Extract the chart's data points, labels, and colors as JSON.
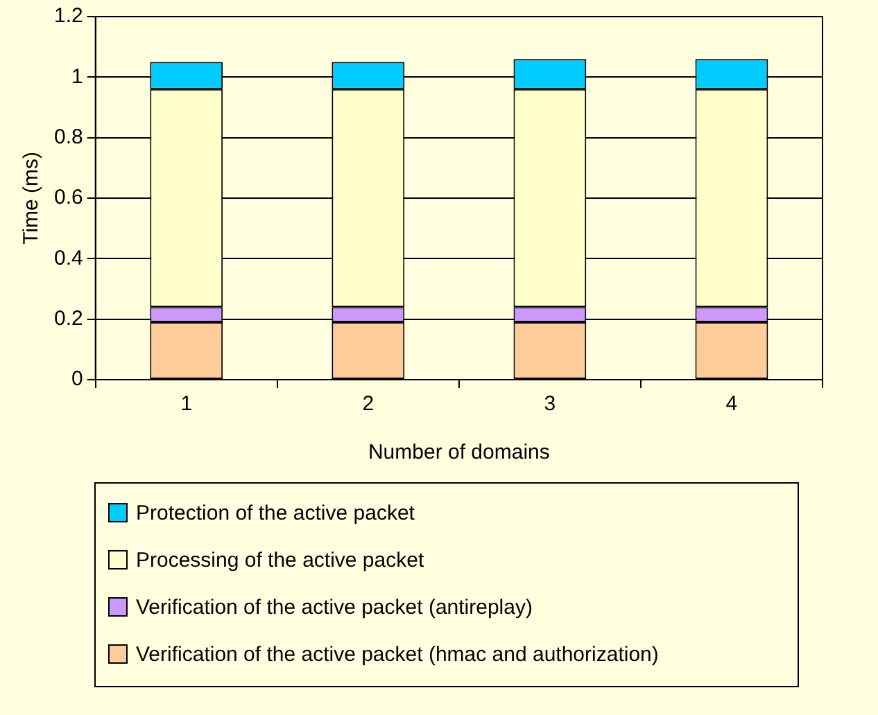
{
  "chart_data": {
    "type": "bar",
    "stacked": true,
    "xlabel": "Number of domains",
    "ylabel": "Time (ms)",
    "categories": [
      "1",
      "2",
      "3",
      "4"
    ],
    "series": [
      {
        "name": "Verification of the active packet (hmac and authorization)",
        "color": "#ffcc99",
        "values": [
          0.19,
          0.19,
          0.19,
          0.19
        ]
      },
      {
        "name": "Verification of the active packet (antireplay)",
        "color": "#cc99ff",
        "values": [
          0.05,
          0.05,
          0.05,
          0.05
        ]
      },
      {
        "name": "Processing of the active packet",
        "color": "#ffffcc",
        "values": [
          0.72,
          0.72,
          0.72,
          0.72
        ]
      },
      {
        "name": "Protection of the active packet",
        "color": "#00ccff",
        "values": [
          0.09,
          0.09,
          0.1,
          0.1
        ]
      }
    ],
    "ylim": [
      0,
      1.2
    ],
    "yticks": [
      0,
      0.2,
      0.4,
      0.6,
      0.8,
      1,
      1.2
    ],
    "grid": "y",
    "legend": "bottom"
  }
}
